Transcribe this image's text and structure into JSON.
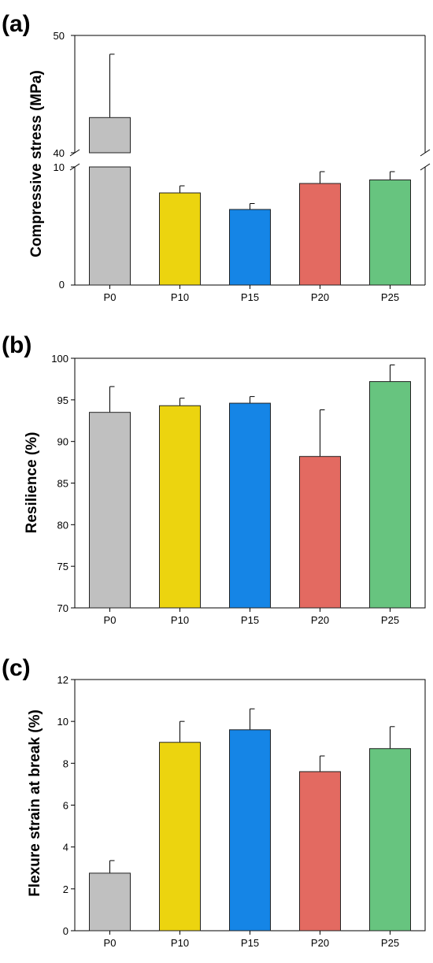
{
  "colors": {
    "P0": "#c0c0c0",
    "P10": "#ecd40f",
    "P15": "#1585e6",
    "P20": "#e36a61",
    "P25": "#67c47f"
  },
  "chart_data": [
    {
      "type": "bar",
      "panel_label": "(a)",
      "ylabel": "Compressive stress (MPa)",
      "categories": [
        "P0",
        "P10",
        "P15",
        "P20",
        "P25"
      ],
      "values": [
        43,
        7.8,
        6.4,
        8.6,
        8.9
      ],
      "errors": [
        5.4,
        0.6,
        0.5,
        1.0,
        0.7
      ],
      "axis_break": {
        "lower_range": [
          0,
          10
        ],
        "upper_range": [
          40,
          50
        ]
      },
      "yticks_lower": [
        "0",
        "10"
      ],
      "yticks_upper": [
        "40",
        "50"
      ]
    },
    {
      "type": "bar",
      "panel_label": "(b)",
      "ylabel": "Resilience (%)",
      "categories": [
        "P0",
        "P10",
        "P15",
        "P20",
        "P25"
      ],
      "values": [
        93.5,
        94.3,
        94.6,
        88.2,
        97.2
      ],
      "errors": [
        3.1,
        0.9,
        0.8,
        5.6,
        2.0
      ],
      "ylim": [
        70,
        100
      ],
      "yticks": [
        "70",
        "75",
        "80",
        "85",
        "90",
        "95",
        "100"
      ]
    },
    {
      "type": "bar",
      "panel_label": "(c)",
      "ylabel": "Flexure strain at break (%)",
      "categories": [
        "P0",
        "P10",
        "P15",
        "P20",
        "P25"
      ],
      "values": [
        2.75,
        9.0,
        9.6,
        7.6,
        8.7
      ],
      "errors": [
        0.6,
        1.0,
        1.0,
        0.75,
        1.05
      ],
      "ylim": [
        0,
        12
      ],
      "yticks": [
        "0",
        "2",
        "4",
        "6",
        "8",
        "10",
        "12"
      ]
    }
  ]
}
